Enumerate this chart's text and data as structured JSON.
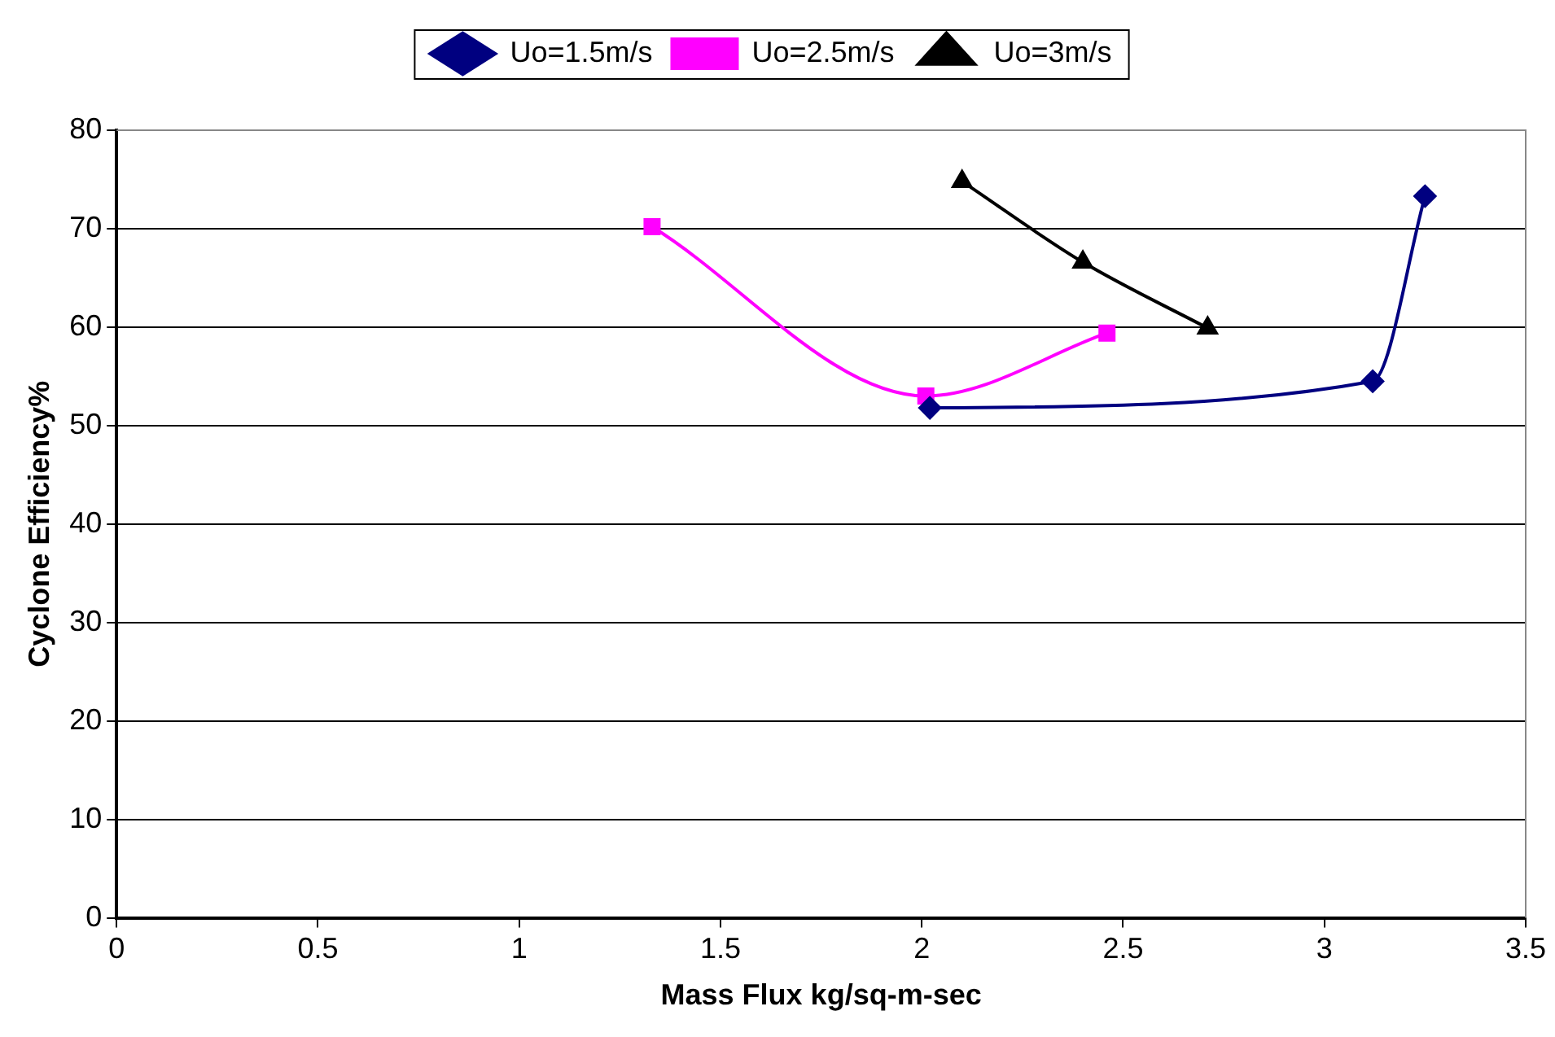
{
  "chart_data": {
    "type": "line",
    "xlabel": "Mass Flux kg/sq-m-sec",
    "ylabel": "Cyclone Efficiency%",
    "xlim": [
      0,
      3.5
    ],
    "xticks": [
      0,
      0.5,
      1,
      1.5,
      2,
      2.5,
      3,
      3.5
    ],
    "ylim": [
      0,
      80
    ],
    "yticks": [
      0,
      10,
      20,
      30,
      40,
      50,
      60,
      70,
      80
    ],
    "grid": "y",
    "legend": "top",
    "line_style": "solid",
    "series": [
      {
        "name": "Uo=1.5m/s",
        "color": "#000080",
        "marker": "diamond",
        "x": [
          2.02,
          3.12,
          3.25
        ],
        "values": [
          51.8,
          54.5,
          73.3
        ]
      },
      {
        "name": "Uo=2.5m/s",
        "color": "#ff00ff",
        "marker": "square",
        "x": [
          1.33,
          2.01,
          2.46
        ],
        "values": [
          70.2,
          53,
          59.4
        ]
      },
      {
        "name": "Uo=3m/s",
        "color": "#000000",
        "marker": "triangle",
        "x": [
          2.1,
          2.4,
          2.71
        ],
        "values": [
          74.8,
          66.6,
          59.9
        ]
      }
    ]
  }
}
